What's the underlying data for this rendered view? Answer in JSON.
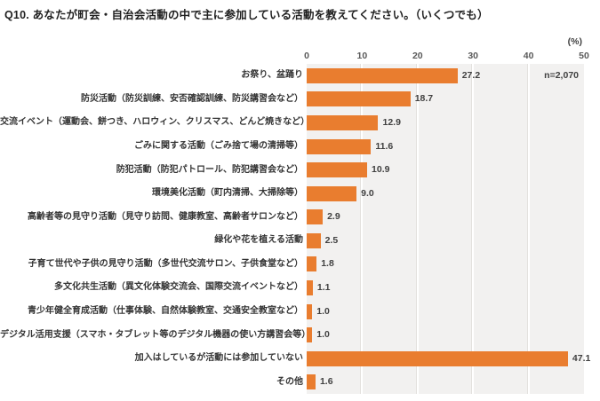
{
  "title": "Q10. あなたが町会・自治会活動の中で主に参加している活動を教えてください。（いくつでも）",
  "unit_label": "(%)",
  "sample_size": "n=2,070",
  "chart_data": {
    "type": "bar",
    "orientation": "horizontal",
    "title": "Q10. あなたが町会・自治会活動の中で主に参加している活動を教えてください。（いくつでも）",
    "xlabel": "(%)",
    "xlim": [
      0,
      50
    ],
    "xticks": [
      0,
      10,
      20,
      30,
      40,
      50
    ],
    "grid": true,
    "legend": "none",
    "bar_color": "#E97D2F",
    "plot_background": "#F2F1F0",
    "annotation": "n=2,070",
    "categories": [
      "お祭り、盆踊り",
      "防災活動（防災訓練、安否確認訓練、防災講習会など）",
      "交流イベント（運動会、餅つき、ハロウィン、クリスマス、どんど焼きなど）",
      "ごみに関する活動（ごみ捨て場の清掃等）",
      "防犯活動（防犯パトロール、防犯講習会など）",
      "環境美化活動（町内清掃、大掃除等）",
      "高齢者等の見守り活動（見守り訪問、健康教室、高齢者サロンなど）",
      "緑化や花を植える活動",
      "子育て世代や子供の見守り活動（多世代交流サロン、子供食堂など）",
      "多文化共生活動（異文化体験交流会、国際交流イベントなど）",
      "青少年健全育成活動（仕事体験、自然体験教室、交通安全教室など）",
      "デジタル活用支援（スマホ・タブレット等のデジタル機器の使い方講習会等）",
      "加入はしているが活動には参加していない",
      "その他"
    ],
    "values": [
      27.2,
      18.7,
      12.9,
      11.6,
      10.9,
      9.0,
      2.9,
      2.5,
      1.8,
      1.1,
      1.0,
      1.0,
      47.1,
      1.6
    ]
  }
}
